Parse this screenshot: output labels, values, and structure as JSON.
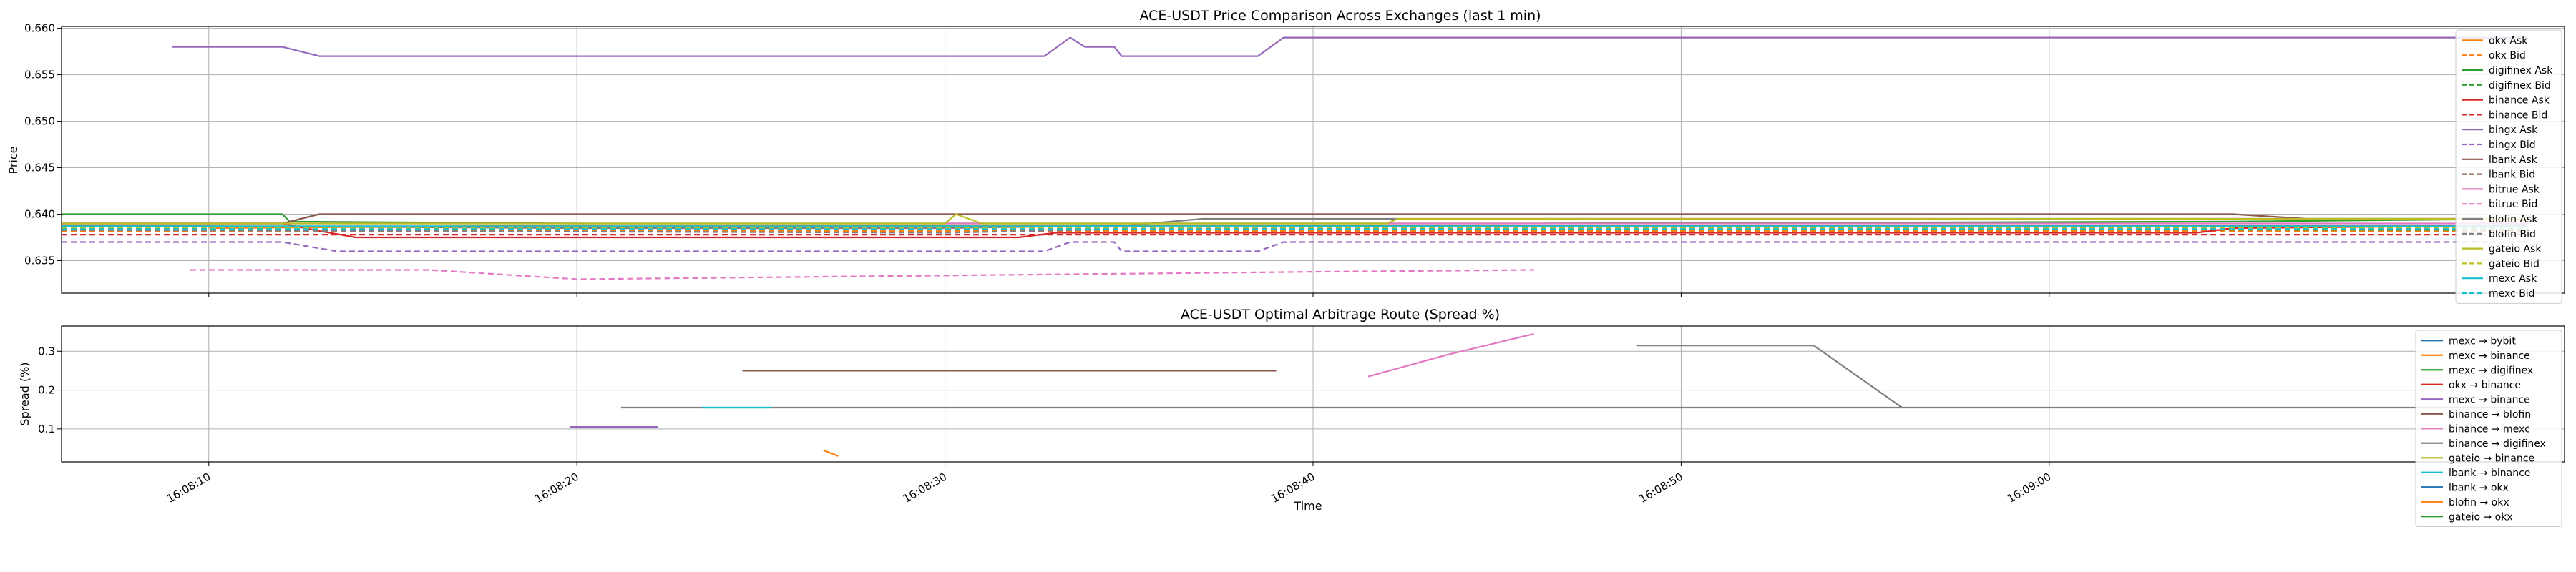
{
  "chart_data": [
    {
      "type": "line",
      "title": "ACE-USDT Price Comparison Across Exchanges (last 1 min)",
      "xlabel": "",
      "ylabel": "Price",
      "x_range": [
        "16:08:06",
        "16:09:14"
      ],
      "ylim": [
        0.6315,
        0.6602
      ],
      "y_ticks": [
        0.635,
        0.64,
        0.645,
        0.65,
        0.655,
        0.66
      ],
      "y_tick_labels": [
        "0.635",
        "0.640",
        "0.645",
        "0.650",
        "0.655",
        "0.660"
      ],
      "x_ticks": [
        "16:08:10",
        "16:08:20",
        "16:08:30",
        "16:08:40",
        "16:08:50",
        "16:09:00"
      ],
      "grid": true,
      "legend_position": "right",
      "series": [
        {
          "name": "okx Ask",
          "color": "#ff7f0e",
          "dash": "solid",
          "points": [
            [
              "16:08:10",
              0.6385
            ],
            [
              "16:08:20",
              0.6388
            ],
            [
              "16:08:21",
              0.6387
            ],
            [
              "16:08:35",
              0.6388
            ],
            [
              "16:09:12",
              0.6388
            ],
            [
              "16:09:13",
              0.639
            ]
          ]
        },
        {
          "name": "okx Bid",
          "color": "#ff7f0e",
          "dash": "dashed",
          "points": [
            [
              "16:08:06",
              0.6382
            ],
            [
              "16:08:45",
              0.6382
            ],
            [
              "16:09:13",
              0.6382
            ]
          ]
        },
        {
          "name": "digifinex Ask",
          "color": "#2ca02c",
          "dash": "solid",
          "points": [
            [
              "16:08:06",
              0.64
            ],
            [
              "16:08:09",
              0.64
            ],
            [
              "16:08:12",
              0.64
            ],
            [
              "16:08:12.2",
              0.6392
            ],
            [
              "16:08:20",
              0.639
            ],
            [
              "16:08:30",
              0.639
            ],
            [
              "16:08:45",
              0.639
            ],
            [
              "16:09:05",
              0.6392
            ],
            [
              "16:09:13",
              0.6395
            ]
          ]
        },
        {
          "name": "digifinex Bid",
          "color": "#2ca02c",
          "dash": "dashed",
          "points": [
            [
              "16:08:06",
              0.6385
            ],
            [
              "16:08:30",
              0.6385
            ],
            [
              "16:09:13",
              0.6383
            ]
          ]
        },
        {
          "name": "binance Ask",
          "color": "#d62728",
          "dash": "solid",
          "points": [
            [
              "16:08:06",
              0.639
            ],
            [
              "16:08:12",
              0.639
            ],
            [
              "16:08:13",
              0.6382
            ],
            [
              "16:08:14",
              0.6375
            ],
            [
              "16:08:30",
              0.6375
            ],
            [
              "16:08:32",
              0.6375
            ],
            [
              "16:08:33",
              0.638
            ],
            [
              "16:08:45",
              0.638
            ],
            [
              "16:08:54",
              0.638
            ],
            [
              "16:08:55",
              0.638
            ],
            [
              "16:09:04",
              0.638
            ],
            [
              "16:09:05",
              0.6385
            ],
            [
              "16:09:13",
              0.6388
            ]
          ]
        },
        {
          "name": "binance Bid",
          "color": "#d62728",
          "dash": "dashed",
          "points": [
            [
              "16:08:06",
              0.6378
            ],
            [
              "16:08:30",
              0.6378
            ],
            [
              "16:09:13",
              0.6378
            ]
          ]
        },
        {
          "name": "bingx Ask",
          "color": "#9467bd",
          "dash": "solid",
          "points": [
            [
              "16:08:09",
              0.658
            ],
            [
              "16:08:12",
              0.658
            ],
            [
              "16:08:13",
              0.657
            ],
            [
              "16:08:20",
              0.657
            ],
            [
              "16:08:28",
              0.657
            ],
            [
              "16:08:32.7",
              0.657
            ],
            [
              "16:08:33.4",
              0.659
            ],
            [
              "16:08:33.8",
              0.658
            ],
            [
              "16:08:34.6",
              0.658
            ],
            [
              "16:08:34.8",
              0.657
            ],
            [
              "16:08:38.5",
              0.657
            ],
            [
              "16:08:39.2",
              0.659
            ],
            [
              "16:08:50",
              0.659
            ],
            [
              "16:09:00",
              0.659
            ],
            [
              "16:09:13",
              0.659
            ]
          ]
        },
        {
          "name": "bingx Bid",
          "color": "#9467bd",
          "dash": "dashed",
          "points": [
            [
              "16:08:06",
              0.637
            ],
            [
              "16:08:12",
              0.637
            ],
            [
              "16:08:13.5",
              0.636
            ],
            [
              "16:08:30",
              0.636
            ],
            [
              "16:08:32.7",
              0.636
            ],
            [
              "16:08:33.4",
              0.637
            ],
            [
              "16:08:34.6",
              0.637
            ],
            [
              "16:08:34.8",
              0.636
            ],
            [
              "16:08:38.5",
              0.636
            ],
            [
              "16:08:39.2",
              0.637
            ],
            [
              "16:09:13",
              0.637
            ]
          ]
        },
        {
          "name": "lbank Ask",
          "color": "#8c564b",
          "dash": "solid",
          "points": [
            [
              "16:08:06",
              0.639
            ],
            [
              "16:08:12",
              0.639
            ],
            [
              "16:08:13",
              0.64
            ],
            [
              "16:08:30",
              0.64
            ],
            [
              "16:08:45",
              0.64
            ],
            [
              "16:09:05",
              0.64
            ],
            [
              "16:09:07",
              0.6395
            ],
            [
              "16:09:13",
              0.6395
            ]
          ]
        },
        {
          "name": "lbank Bid",
          "color": "#8c564b",
          "dash": "dashed",
          "points": [
            [
              "16:08:06",
              0.6385
            ],
            [
              "16:08:30",
              0.6384
            ],
            [
              "16:09:13",
              0.6384
            ]
          ]
        },
        {
          "name": "bitrue Ask",
          "color": "#e377c2",
          "dash": "solid",
          "points": [
            [
              "16:08:06",
              0.639
            ],
            [
              "16:08:30",
              0.639
            ],
            [
              "16:09:13",
              0.639
            ]
          ]
        },
        {
          "name": "bitrue Bid",
          "color": "#e377c2",
          "dash": "dashed",
          "points": [
            [
              "16:08:09.5",
              0.634
            ],
            [
              "16:08:16",
              0.634
            ],
            [
              "16:08:20",
              0.633
            ],
            [
              "16:08:30",
              0.6334
            ],
            [
              "16:08:40",
              0.6338
            ],
            [
              "16:08:46",
              0.634
            ]
          ]
        },
        {
          "name": "blofin Ask",
          "color": "#7f7f7f",
          "dash": "solid",
          "points": [
            [
              "16:08:06",
              0.6388
            ],
            [
              "16:08:20",
              0.6385
            ],
            [
              "16:08:30",
              0.6385
            ],
            [
              "16:08:35",
              0.6388
            ],
            [
              "16:08:37",
              0.6395
            ],
            [
              "16:08:50",
              0.6395
            ],
            [
              "16:09:13",
              0.6395
            ]
          ]
        },
        {
          "name": "blofin Bid",
          "color": "#7f7f7f",
          "dash": "dashed",
          "points": [
            [
              "16:08:06",
              0.6383
            ],
            [
              "16:08:30",
              0.638
            ],
            [
              "16:08:40",
              0.6388
            ],
            [
              "16:09:13",
              0.6388
            ]
          ]
        },
        {
          "name": "gateio Ask",
          "color": "#bcbd22",
          "dash": "solid",
          "points": [
            [
              "16:08:06",
              0.639
            ],
            [
              "16:08:30",
              0.639
            ],
            [
              "16:08:30.3",
              0.64
            ],
            [
              "16:08:31",
              0.639
            ],
            [
              "16:08:42",
              0.639
            ],
            [
              "16:08:42.3",
              0.6395
            ],
            [
              "16:09:13",
              0.6395
            ]
          ]
        },
        {
          "name": "gateio Bid",
          "color": "#bcbd22",
          "dash": "dashed",
          "points": [
            [
              "16:08:06",
              0.6385
            ],
            [
              "16:08:30",
              0.6385
            ],
            [
              "16:09:13",
              0.6385
            ]
          ]
        },
        {
          "name": "mexc Ask",
          "color": "#17becf",
          "dash": "solid",
          "points": [
            [
              "16:08:06",
              0.6387
            ],
            [
              "16:08:30",
              0.6387
            ],
            [
              "16:09:13",
              0.6387
            ]
          ]
        },
        {
          "name": "mexc Bid",
          "color": "#17becf",
          "dash": "dashed",
          "points": [
            [
              "16:08:06",
              0.6384
            ],
            [
              "16:08:30",
              0.6384
            ],
            [
              "16:09:13",
              0.6384
            ]
          ]
        }
      ]
    },
    {
      "type": "line",
      "title": "ACE-USDT Optimal Arbitrage Route (Spread %)",
      "xlabel": "Time",
      "ylabel": "Spread (%)",
      "x_range": [
        "16:08:06",
        "16:09:14"
      ],
      "ylim": [
        0.015,
        0.365
      ],
      "y_ticks": [
        0.1,
        0.2,
        0.3
      ],
      "y_tick_labels": [
        "0.1",
        "0.2",
        "0.3"
      ],
      "x_ticks": [
        "16:08:10",
        "16:08:20",
        "16:08:30",
        "16:08:40",
        "16:08:50",
        "16:09:00"
      ],
      "x_tick_labels": [
        "16:08:10",
        "16:08:20",
        "16:08:30",
        "16:08:40",
        "16:08:50",
        "16:09:00"
      ],
      "grid": true,
      "legend_position": "right",
      "series": [
        {
          "name": "mexc → bybit",
          "color": "#1f77b4",
          "points": []
        },
        {
          "name": "mexc → binance",
          "color": "#ff7f0e",
          "points": [
            [
              "16:08:26.7",
              0.045
            ],
            [
              "16:08:27.1",
              0.03
            ]
          ]
        },
        {
          "name": "mexc → digifinex",
          "color": "#2ca02c",
          "points": []
        },
        {
          "name": "okx → binance",
          "color": "#d62728",
          "points": [
            [
              "16:08:24.5",
              0.25
            ],
            [
              "16:08:39",
              0.25
            ]
          ]
        },
        {
          "name": "mexc → binance",
          "color": "#9467bd",
          "points": [
            [
              "16:08:19.8",
              0.105
            ],
            [
              "16:08:22.2",
              0.105
            ]
          ]
        },
        {
          "name": "binance → blofin",
          "color": "#8c564b",
          "points": [
            [
              "16:08:24.5",
              0.25
            ],
            [
              "16:08:39",
              0.25
            ]
          ]
        },
        {
          "name": "binance → mexc",
          "color": "#e377c2",
          "points": [
            [
              "16:08:41.5",
              0.235
            ],
            [
              "16:08:43.6",
              0.29
            ],
            [
              "16:08:46",
              0.345
            ]
          ]
        },
        {
          "name": "binance → digifinex",
          "color": "#7f7f7f",
          "points": [
            [
              "16:08:21.2",
              0.155
            ],
            [
              "16:09:12.6",
              0.155
            ]
          ],
          "extra": [
            [
              "16:08:48.8",
              0.315
            ],
            [
              "16:08:53.6",
              0.315
            ],
            [
              "16:08:56",
              0.155
            ]
          ]
        },
        {
          "name": "gateio → binance",
          "color": "#bcbd22",
          "points": []
        },
        {
          "name": "lbank → binance",
          "color": "#17becf",
          "points": [
            [
              "16:08:23.4",
              0.155
            ],
            [
              "16:08:25.3",
              0.155
            ]
          ]
        },
        {
          "name": "lbank → okx",
          "color": "#1f77b4",
          "points": []
        },
        {
          "name": "blofin → okx",
          "color": "#ff7f0e",
          "points": []
        },
        {
          "name": "gateio → okx",
          "color": "#2ca02c",
          "points": []
        }
      ]
    }
  ]
}
